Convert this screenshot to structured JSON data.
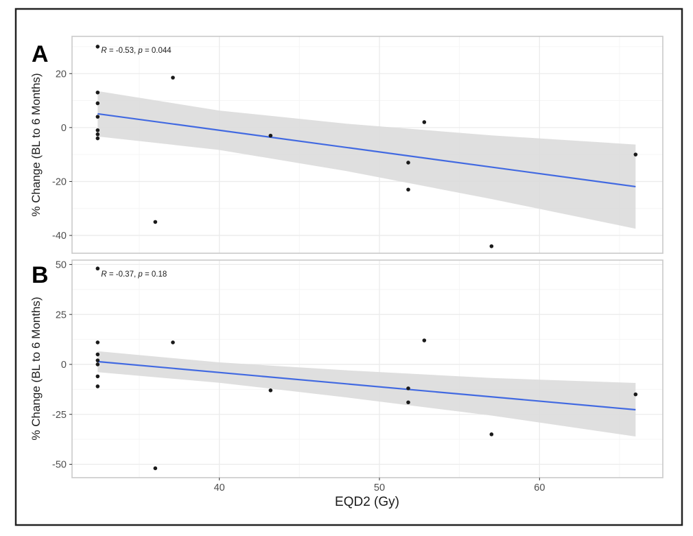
{
  "figure": {
    "x_axis_label": "EQD2 (Gy)",
    "y_axis_label": "% Change (BL to 6 Months)",
    "colors": {
      "regression_line": "#4169E1",
      "ci_band": "#DCDCDC",
      "point": "#1A1A1A",
      "grid_major": "#EBEBEB",
      "grid_minor": "#F5F5F5",
      "panel_border": "#C9C9C9",
      "tick_mark": "#333333",
      "tick_text": "#4D4D4D",
      "outer_frame": "#222222",
      "panel_background": "#FFFFFF"
    }
  },
  "chart_data": [
    {
      "panel_label": "A",
      "type": "scatter",
      "annotation": {
        "text": "R = -0.53, p = 0.044",
        "R": "-0.53",
        "p": "0.044"
      },
      "xlabel": "EQD2 (Gy)",
      "ylabel": "% Change (BL to 6 Months)",
      "x_domain": [
        30.8,
        67.7
      ],
      "y_domain": [
        -46.6,
        33.8
      ],
      "x_ticks": [
        40,
        50,
        60
      ],
      "x_minor_ticks": [
        35,
        45,
        55,
        65
      ],
      "y_ticks": [
        20,
        0,
        -20,
        -40
      ],
      "y_minor_ticks": [
        30,
        10,
        -10,
        -30
      ],
      "points": [
        [
          32.4,
          30
        ],
        [
          32.4,
          13
        ],
        [
          32.4,
          9
        ],
        [
          32.4,
          4
        ],
        [
          32.4,
          -1
        ],
        [
          32.4,
          -2.5
        ],
        [
          32.4,
          -4
        ],
        [
          36,
          -35
        ],
        [
          37.1,
          18.5
        ],
        [
          43.2,
          -3
        ],
        [
          51.8,
          -13
        ],
        [
          51.8,
          -23
        ],
        [
          52.8,
          2
        ],
        [
          57,
          -44
        ],
        [
          66,
          -10
        ]
      ],
      "regression": {
        "x": [
          32.4,
          66
        ],
        "y": [
          5.1,
          -21.9
        ]
      },
      "ci_band": {
        "x": [
          32.4,
          40,
          48,
          57,
          66
        ],
        "upper": [
          13.5,
          6.3,
          1.4,
          -2.9,
          -6.3
        ],
        "lower": [
          -3.3,
          -8.3,
          -16.2,
          -26.5,
          -37.5
        ]
      }
    },
    {
      "panel_label": "B",
      "type": "scatter",
      "annotation": {
        "text": "R = -0.37, p = 0.18",
        "R": "-0.37",
        "p": "0.18"
      },
      "xlabel": "EQD2 (Gy)",
      "ylabel": "% Change (BL to 6 Months)",
      "x_domain": [
        30.8,
        67.7
      ],
      "y_domain": [
        -56.7,
        52.2
      ],
      "x_ticks": [
        40,
        50,
        60
      ],
      "x_minor_ticks": [
        35,
        45,
        55,
        65
      ],
      "y_ticks": [
        50,
        25,
        0,
        -25,
        -50
      ],
      "y_minor_ticks": [
        37.5,
        12.5,
        -12.5,
        -37.5
      ],
      "points": [
        [
          32.4,
          48
        ],
        [
          32.4,
          11
        ],
        [
          32.4,
          5
        ],
        [
          32.4,
          2
        ],
        [
          32.4,
          0
        ],
        [
          32.4,
          -6
        ],
        [
          32.4,
          -11
        ],
        [
          36,
          -52
        ],
        [
          37.1,
          11
        ],
        [
          43.2,
          -13
        ],
        [
          51.8,
          -12
        ],
        [
          51.8,
          -19
        ],
        [
          52.8,
          12
        ],
        [
          57,
          -35
        ],
        [
          66,
          -15
        ]
      ],
      "regression": {
        "x": [
          32.4,
          66
        ],
        "y": [
          1.4,
          -22.7
        ]
      },
      "ci_band": {
        "x": [
          32.4,
          40,
          48,
          57,
          66
        ],
        "upper": [
          6.6,
          1.0,
          -3.0,
          -6.8,
          -9.3
        ],
        "lower": [
          -3.9,
          -9.2,
          -16.6,
          -25.6,
          -36.1
        ]
      }
    }
  ]
}
